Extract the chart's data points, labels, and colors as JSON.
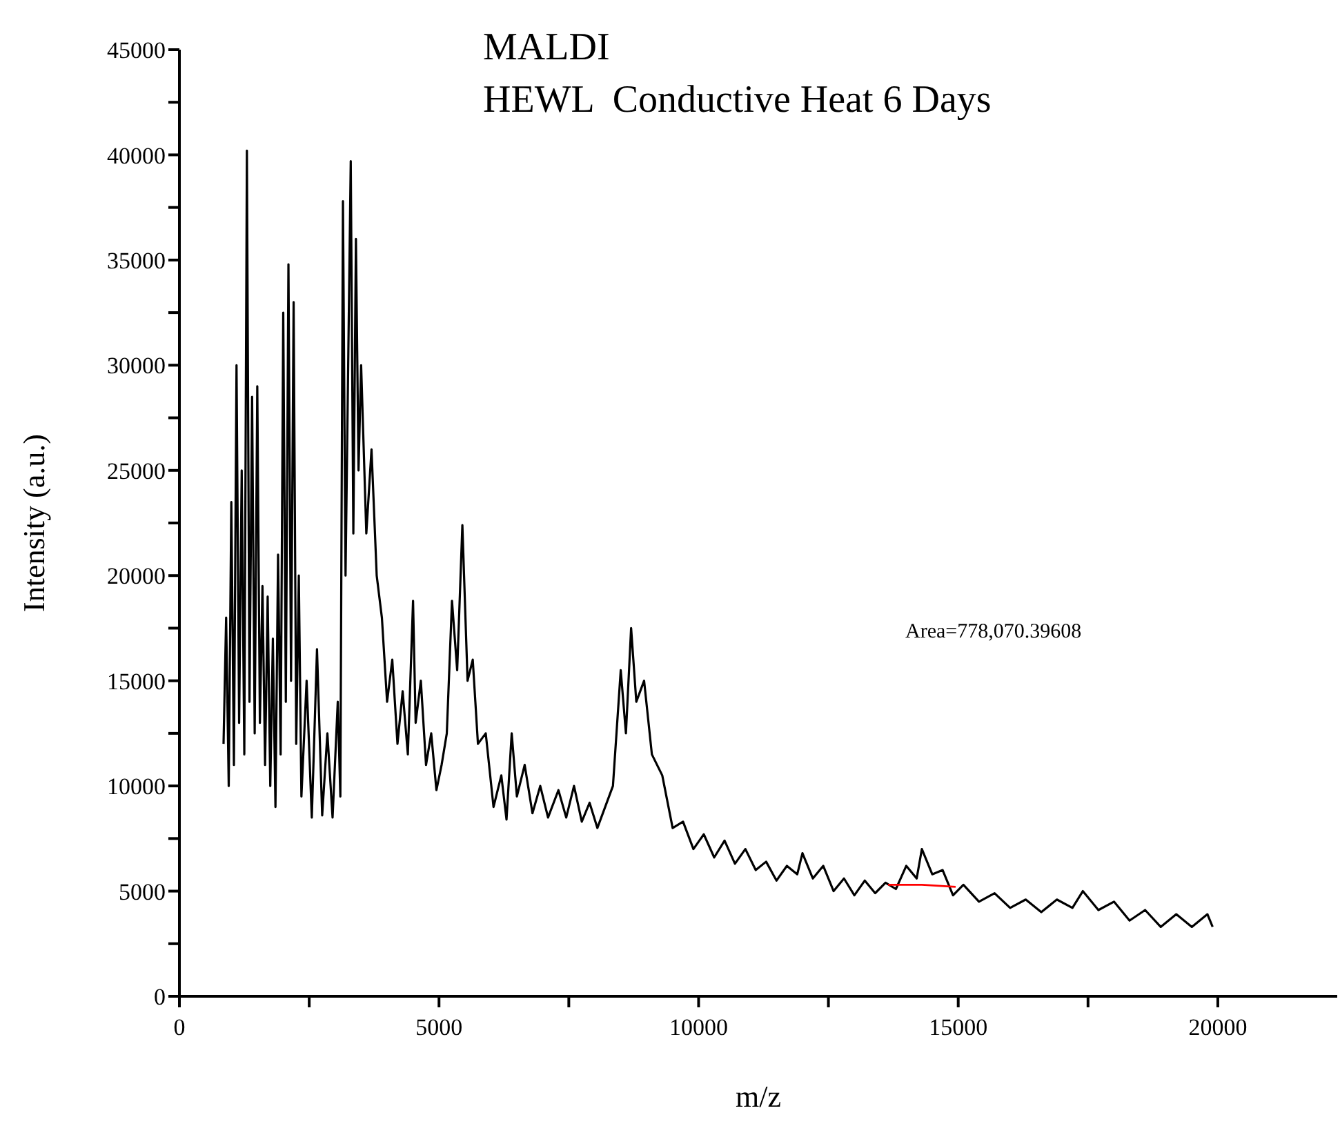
{
  "chart_data": {
    "type": "line",
    "title": "MALDI",
    "subtitle": "HEWL  Conductive Heat 6 Days",
    "xlabel": "m/z",
    "ylabel": "Intensity (a.u.)",
    "annotations": [
      "Area=778,070.39608"
    ],
    "xlim": [
      0,
      22300
    ],
    "ylim": [
      0,
      45000
    ],
    "xticks": [
      0,
      {
        "value": 2500,
        "label": null
      },
      5000,
      {
        "value": 7500,
        "label": null
      },
      10000,
      {
        "value": 12500,
        "label": null
      },
      15000,
      {
        "value": 17500,
        "label": null
      },
      20000
    ],
    "yticks": [
      0,
      {
        "value": 2500,
        "label": null
      },
      5000,
      {
        "value": 7500,
        "label": null
      },
      10000,
      {
        "value": 12500,
        "label": null
      },
      15000,
      {
        "value": 17500,
        "label": null
      },
      20000,
      {
        "value": 22500,
        "label": null
      },
      25000,
      {
        "value": 27500,
        "label": null
      },
      30000,
      {
        "value": 32500,
        "label": null
      },
      35000,
      {
        "value": 37500,
        "label": null
      },
      40000,
      {
        "value": 42500,
        "label": null
      },
      45000
    ],
    "series": [
      {
        "color": "#000000",
        "x": [
          850,
          900,
          950,
          1000,
          1050,
          1100,
          1150,
          1200,
          1250,
          1300,
          1350,
          1400,
          1450,
          1500,
          1550,
          1600,
          1650,
          1700,
          1750,
          1800,
          1850,
          1900,
          1950,
          2000,
          2050,
          2100,
          2150,
          2200,
          2250,
          2300,
          2350,
          2450,
          2550,
          2650,
          2750,
          2850,
          2950,
          3050,
          3100,
          3150,
          3200,
          3300,
          3350,
          3400,
          3450,
          3500,
          3600,
          3700,
          3800,
          3900,
          4000,
          4100,
          4200,
          4300,
          4400,
          4500,
          4550,
          4650,
          4750,
          4850,
          4950,
          5050,
          5150,
          5250,
          5350,
          5450,
          5550,
          5650,
          5750,
          5900,
          6050,
          6200,
          6300,
          6400,
          6500,
          6650,
          6800,
          6950,
          7100,
          7300,
          7450,
          7600,
          7750,
          7900,
          8050,
          8200,
          8350,
          8500,
          8600,
          8700,
          8800,
          8950,
          9100,
          9300,
          9500,
          9700,
          9900,
          10100,
          10300,
          10500,
          10700,
          10900,
          11100,
          11300,
          11500,
          11700,
          11900,
          12000,
          12200,
          12400,
          12600,
          12800,
          13000,
          13200,
          13400,
          13600,
          13800,
          14000,
          14200,
          14300,
          14500,
          14700,
          14900,
          15100,
          15400,
          15700,
          16000,
          16300,
          16600,
          16900,
          17200,
          17400,
          17700,
          18000,
          18300,
          18600,
          18900,
          19200,
          19500,
          19800,
          19900
        ],
        "values": [
          12000,
          18000,
          10000,
          23500,
          11000,
          30000,
          13000,
          25000,
          11500,
          40200,
          14000,
          28500,
          12500,
          29000,
          13000,
          19500,
          11000,
          19000,
          10000,
          17000,
          9000,
          21000,
          11500,
          32500,
          14000,
          34800,
          15000,
          33000,
          12000,
          20000,
          9500,
          15000,
          8500,
          16500,
          8600,
          12500,
          8500,
          14000,
          9500,
          37800,
          20000,
          39700,
          22000,
          36000,
          25000,
          30000,
          22000,
          26000,
          20000,
          18000,
          14000,
          16000,
          12000,
          14500,
          11500,
          18800,
          13000,
          15000,
          11000,
          12500,
          9800,
          11000,
          12500,
          18800,
          15500,
          22400,
          15000,
          16000,
          12000,
          12500,
          9000,
          10500,
          8400,
          12500,
          9500,
          11000,
          8700,
          10000,
          8500,
          9800,
          8500,
          10000,
          8300,
          9200,
          8000,
          9000,
          10000,
          15500,
          12500,
          17500,
          14000,
          15000,
          11500,
          10500,
          8000,
          8300,
          7000,
          7700,
          6600,
          7400,
          6300,
          7000,
          6000,
          6400,
          5500,
          6200,
          5800,
          6800,
          5600,
          6200,
          5000,
          5600,
          4800,
          5500,
          4900,
          5400,
          5100,
          6200,
          5600,
          7000,
          5800,
          6000,
          4800,
          5300,
          4500,
          4900,
          4200,
          4600,
          4000,
          4600,
          4200,
          5000,
          4100,
          4500,
          3600,
          4100,
          3300,
          3900,
          3300,
          3900,
          3300
        ]
      },
      {
        "color": "#ff0000",
        "x": [
          13650,
          14300,
          14950
        ],
        "values": [
          5300,
          5300,
          5200
        ]
      }
    ]
  }
}
